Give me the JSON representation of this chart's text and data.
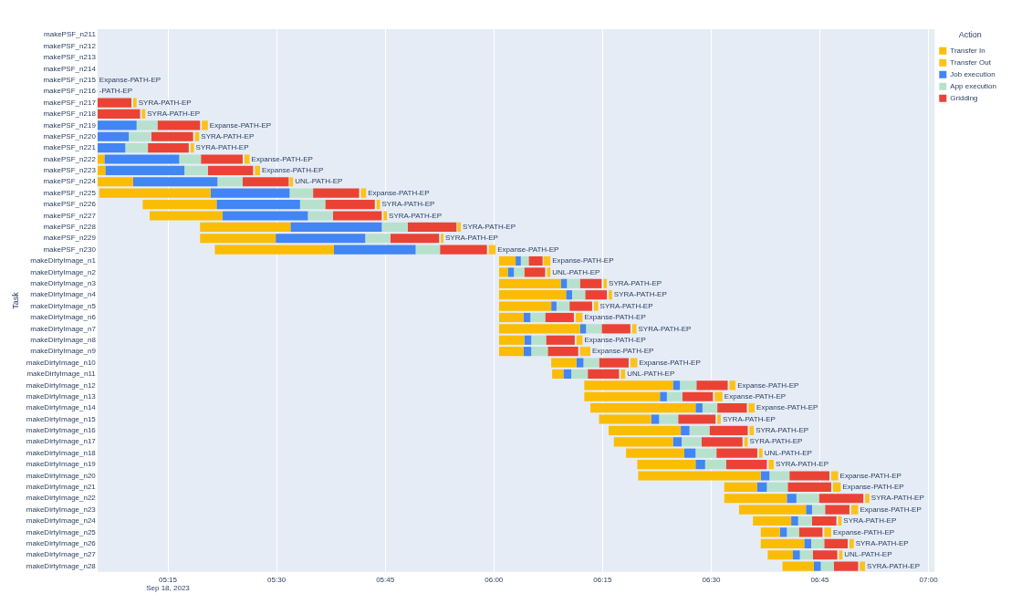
{
  "chart_data": {
    "type": "bar",
    "orientation": "horizontal",
    "ylabel": "Task",
    "legend_title": "Action",
    "legend": "top right",
    "grid": "x",
    "xlim": [
      5.088,
      7.014
    ],
    "xticks": [
      {
        "value": 5.25,
        "label": "05:15\nSep 18, 2023"
      },
      {
        "value": 5.5,
        "label": "05:30"
      },
      {
        "value": 5.75,
        "label": "05:45"
      },
      {
        "value": 6,
        "label": "06:00"
      },
      {
        "value": 6.25,
        "label": "06:15"
      },
      {
        "value": 6.5,
        "label": "06:30"
      },
      {
        "value": 6.75,
        "label": "06:45"
      },
      {
        "value": 7,
        "label": "07:00"
      }
    ],
    "categories": [
      "makePSF_n211",
      "makePSF_n212",
      "makePSF_n213",
      "makePSF_n214",
      "makePSF_n215",
      "makePSF_n216",
      "makePSF_n217",
      "makePSF_n218",
      "makePSF_n219",
      "makePSF_n220",
      "makePSF_n221",
      "makePSF_n222",
      "makePSF_n223",
      "makePSF_n224",
      "makePSF_n225",
      "makePSF_n226",
      "makePSF_n227",
      "makePSF_n228",
      "makePSF_n229",
      "makePSF_n230",
      "makeDirtyImage_n1",
      "makeDirtyImage_n2",
      "makeDirtyImage_n3",
      "makeDirtyImage_n4",
      "makeDirtyImage_n5",
      "makeDirtyImage_n6",
      "makeDirtyImage_n7",
      "makeDirtyImage_n8",
      "makeDirtyImage_n9",
      "makeDirtyImage_n10",
      "makeDirtyImage_n11",
      "makeDirtyImage_n12",
      "makeDirtyImage_n13",
      "makeDirtyImage_n14",
      "makeDirtyImage_n15",
      "makeDirtyImage_n16",
      "makeDirtyImage_n17",
      "makeDirtyImage_n18",
      "makeDirtyImage_n19",
      "makeDirtyImage_n20",
      "makeDirtyImage_n21",
      "makeDirtyImage_n22",
      "makeDirtyImage_n23",
      "makeDirtyImage_n24",
      "makeDirtyImage_n25",
      "makeDirtyImage_n26",
      "makeDirtyImage_n27",
      "makeDirtyImage_n28"
    ],
    "series": [
      {
        "name": "Transfer In",
        "color": "#fbbc04",
        "base": [
          null,
          null,
          null,
          null,
          null,
          null,
          null,
          null,
          null,
          null,
          null,
          5.088,
          5.088,
          5.088,
          5.092,
          5.192,
          5.208,
          5.324,
          5.324,
          5.358,
          6.012,
          6.012,
          6.012,
          6.012,
          6.012,
          6.012,
          6.012,
          6.012,
          6.012,
          6.132,
          6.134,
          6.208,
          6.208,
          6.222,
          6.242,
          6.264,
          6.276,
          6.304,
          6.33,
          6.332,
          6.53,
          6.53,
          6.564,
          6.596,
          6.614,
          6.614,
          6.63,
          6.664
        ],
        "values": [
          null,
          null,
          null,
          null,
          null,
          null,
          null,
          null,
          null,
          null,
          null,
          0.016,
          0.018,
          0.082,
          0.256,
          0.17,
          0.168,
          0.208,
          0.174,
          0.274,
          0.038,
          0.02,
          0.142,
          0.154,
          0.12,
          0.056,
          0.186,
          0.058,
          0.056,
          0.058,
          0.026,
          0.204,
          0.174,
          0.242,
          0.12,
          0.166,
          0.136,
          0.134,
          0.134,
          0.282,
          0.076,
          0.144,
          0.154,
          0.088,
          0.044,
          0.1,
          0.058,
          0.072
        ]
      },
      {
        "name": "Transfer Out",
        "color": "#fcc21b",
        "base": [
          null,
          null,
          null,
          null,
          null,
          null,
          5.17,
          5.19,
          5.328,
          5.312,
          5.302,
          5.426,
          5.45,
          5.53,
          5.694,
          5.73,
          5.746,
          5.916,
          5.878,
          5.988,
          6.114,
          6.122,
          6.252,
          6.264,
          6.23,
          6.188,
          6.318,
          6.19,
          6.198,
          6.314,
          6.292,
          6.542,
          6.508,
          6.586,
          6.514,
          6.588,
          6.576,
          6.61,
          6.632,
          6.776,
          6.78,
          6.854,
          6.822,
          6.792,
          6.76,
          6.818,
          6.794,
          6.842
        ],
        "values": [
          null,
          null,
          null,
          null,
          null,
          null,
          0.008,
          0.008,
          0.014,
          0.01,
          0.008,
          0.012,
          0.012,
          0.008,
          0.012,
          0.008,
          0.008,
          0.008,
          0.006,
          0.016,
          0.016,
          0.008,
          0.008,
          0.008,
          0.01,
          0.016,
          0.01,
          0.014,
          0.024,
          0.016,
          0.01,
          0.014,
          0.018,
          0.014,
          0.008,
          0.01,
          0.008,
          0.008,
          0.012,
          0.016,
          0.018,
          0.01,
          0.016,
          0.008,
          0.016,
          0.01,
          0.008,
          0.012
        ]
      },
      {
        "name": "Job execution",
        "color": "#4285f4",
        "base": [
          null,
          null,
          null,
          null,
          null,
          null,
          null,
          null,
          5.088,
          5.088,
          5.088,
          5.104,
          5.106,
          5.17,
          5.348,
          5.362,
          5.376,
          5.532,
          5.498,
          5.632,
          6.05,
          6.032,
          6.154,
          6.166,
          6.132,
          6.068,
          6.198,
          6.07,
          6.068,
          6.19,
          6.16,
          6.412,
          6.382,
          6.464,
          6.362,
          6.43,
          6.412,
          6.438,
          6.464,
          6.614,
          6.606,
          6.674,
          6.718,
          6.684,
          6.658,
          6.714,
          6.688,
          6.736
        ],
        "values": [
          null,
          null,
          null,
          null,
          null,
          null,
          null,
          null,
          0.09,
          0.072,
          0.064,
          0.172,
          0.182,
          0.194,
          0.182,
          0.192,
          0.196,
          0.21,
          0.206,
          0.188,
          0.012,
          0.014,
          0.014,
          0.014,
          0.012,
          0.016,
          0.014,
          0.016,
          0.018,
          0.016,
          0.018,
          0.016,
          0.016,
          0.016,
          0.018,
          0.02,
          0.02,
          0.026,
          0.022,
          0.02,
          0.022,
          0.022,
          0.014,
          0.016,
          0.016,
          0.016,
          0.016,
          0.016
        ]
      },
      {
        "name": "App execution",
        "color": "#b7e1cd",
        "base": [
          null,
          null,
          null,
          null,
          null,
          null,
          null,
          null,
          5.178,
          5.16,
          5.152,
          5.276,
          5.288,
          5.364,
          5.53,
          5.554,
          5.572,
          5.742,
          5.704,
          5.82,
          6.062,
          6.046,
          6.168,
          6.18,
          6.144,
          6.084,
          6.212,
          6.086,
          6.086,
          6.206,
          6.178,
          6.428,
          6.398,
          6.48,
          6.38,
          6.45,
          6.432,
          6.464,
          6.486,
          6.634,
          6.628,
          6.696,
          6.732,
          6.7,
          6.674,
          6.73,
          6.704,
          6.752
        ],
        "values": [
          null,
          null,
          null,
          null,
          null,
          null,
          null,
          null,
          0.048,
          0.052,
          0.052,
          0.05,
          0.054,
          0.058,
          0.054,
          0.058,
          0.058,
          0.06,
          0.058,
          0.056,
          0.018,
          0.024,
          0.03,
          0.03,
          0.03,
          0.034,
          0.036,
          0.034,
          0.038,
          0.036,
          0.038,
          0.038,
          0.036,
          0.034,
          0.044,
          0.046,
          0.046,
          0.048,
          0.048,
          0.046,
          0.048,
          0.052,
          0.03,
          0.032,
          0.028,
          0.03,
          0.03,
          0.03
        ]
      },
      {
        "name": "Gridding",
        "color": "#ea4335",
        "base": [
          null,
          null,
          null,
          null,
          null,
          null,
          5.088,
          5.088,
          5.226,
          5.212,
          5.204,
          5.326,
          5.342,
          5.422,
          5.584,
          5.612,
          5.63,
          5.802,
          5.762,
          5.876,
          6.08,
          6.07,
          6.198,
          6.21,
          6.174,
          6.118,
          6.248,
          6.12,
          6.124,
          6.242,
          6.216,
          6.466,
          6.434,
          6.514,
          6.424,
          6.496,
          6.478,
          6.512,
          6.534,
          6.68,
          6.676,
          6.748,
          6.762,
          6.732,
          6.702,
          6.76,
          6.734,
          6.782
        ],
        "values": [
          null,
          null,
          null,
          null,
          null,
          null,
          0.078,
          0.098,
          0.098,
          0.096,
          0.094,
          0.096,
          0.104,
          0.106,
          0.106,
          0.114,
          0.112,
          0.112,
          0.112,
          0.108,
          0.032,
          0.048,
          0.05,
          0.05,
          0.052,
          0.066,
          0.066,
          0.066,
          0.07,
          0.068,
          0.072,
          0.072,
          0.07,
          0.068,
          0.086,
          0.088,
          0.094,
          0.094,
          0.094,
          0.092,
          0.1,
          0.102,
          0.056,
          0.056,
          0.054,
          0.054,
          0.056,
          0.056
        ]
      }
    ],
    "annotations": [
      "Expanse-PATH-EP",
      "-PATH-EP",
      {
        "text": "SYRA-PATH-EP",
        "x": 5.178,
        "y": "makePSF_n217"
      },
      {
        "text": "SYRA-PATH-EP",
        "x": 5.198,
        "y": "makePSF_n218"
      },
      {
        "text": "Expanse-PATH-EP",
        "x": 5.342,
        "y": "makePSF_n219"
      },
      {
        "text": "SYRA-PATH-EP",
        "x": 5.322,
        "y": "makePSF_n220"
      },
      {
        "text": "SYRA-PATH-EP",
        "x": 5.31,
        "y": "makePSF_n221"
      },
      {
        "text": "Expanse-PATH-EP",
        "x": 5.438,
        "y": "makePSF_n222"
      },
      {
        "text": "Expanse-PATH-EP",
        "x": 5.462,
        "y": "makePSF_n223"
      },
      {
        "text": "UNL-PATH-EP",
        "x": 5.538,
        "y": "makePSF_n224"
      },
      {
        "text": "Expanse-PATH-EP",
        "x": 5.706,
        "y": "makePSF_n225"
      },
      {
        "text": "SYRA-PATH-EP",
        "x": 5.738,
        "y": "makePSF_n226"
      },
      {
        "text": "SYRA-PATH-EP",
        "x": 5.754,
        "y": "makePSF_n227"
      },
      {
        "text": "SYRA-PATH-EP",
        "x": 5.924,
        "y": "makePSF_n228"
      },
      {
        "text": "SYRA-PATH-EP",
        "x": 5.884,
        "y": "makePSF_n229"
      },
      {
        "text": "Expanse-PATH-EP",
        "x": 6.004,
        "y": "makePSF_n230"
      },
      {
        "text": "Expanse-PATH-EP",
        "x": 6.13,
        "y": "makeDirtyImage_n1"
      },
      {
        "text": "UNL-PATH-EP",
        "x": 6.13,
        "y": "makeDirtyImage_n2"
      },
      {
        "text": "SYRA-PATH-EP",
        "x": 6.26,
        "y": "makeDirtyImage_n3"
      },
      {
        "text": "SYRA-PATH-EP",
        "x": 6.272,
        "y": "makeDirtyImage_n4"
      },
      {
        "text": "SYRA-PATH-EP",
        "x": 6.24,
        "y": "makeDirtyImage_n5"
      },
      {
        "text": "Expanse-PATH-EP",
        "x": 6.204,
        "y": "makeDirtyImage_n6"
      },
      {
        "text": "SYRA-PATH-EP",
        "x": 6.328,
        "y": "makeDirtyImage_n7"
      },
      {
        "text": "Expanse-PATH-EP",
        "x": 6.204,
        "y": "makeDirtyImage_n8"
      },
      {
        "text": "Expanse-PATH-EP",
        "x": 6.222,
        "y": "makeDirtyImage_n9"
      },
      {
        "text": "Expanse-PATH-EP",
        "x": 6.33,
        "y": "makeDirtyImage_n10"
      },
      {
        "text": "UNL-PATH-EP",
        "x": 6.302,
        "y": "makeDirtyImage_n11"
      },
      {
        "text": "Expanse-PATH-EP",
        "x": 6.556,
        "y": "makeDirtyImage_n12"
      },
      {
        "text": "Expanse-PATH-EP",
        "x": 6.526,
        "y": "makeDirtyImage_n13"
      },
      {
        "text": "Expanse-PATH-EP",
        "x": 6.6,
        "y": "makeDirtyImage_n14"
      },
      {
        "text": "SYRA-PATH-EP",
        "x": 6.522,
        "y": "makeDirtyImage_n15"
      },
      {
        "text": "SYRA-PATH-EP",
        "x": 6.598,
        "y": "makeDirtyImage_n16"
      },
      {
        "text": "SYRA-PATH-EP",
        "x": 6.584,
        "y": "makeDirtyImage_n17"
      },
      {
        "text": "UNL-PATH-EP",
        "x": 6.618,
        "y": "makeDirtyImage_n18"
      },
      {
        "text": "SYRA-PATH-EP",
        "x": 6.644,
        "y": "makeDirtyImage_n19"
      },
      {
        "text": "Expanse-PATH-EP",
        "x": 6.792,
        "y": "makeDirtyImage_n20"
      },
      {
        "text": "Expanse-PATH-EP",
        "x": 6.798,
        "y": "makeDirtyImage_n21"
      },
      {
        "text": "SYRA-PATH-EP",
        "x": 6.864,
        "y": "makeDirtyImage_n22"
      },
      {
        "text": "Expanse-PATH-EP",
        "x": 6.838,
        "y": "makeDirtyImage_n23"
      },
      {
        "text": "SYRA-PATH-EP",
        "x": 6.8,
        "y": "makeDirtyImage_n24"
      },
      {
        "text": "Expanse-PATH-EP",
        "x": 6.776,
        "y": "makeDirtyImage_n25"
      },
      {
        "text": "SYRA-PATH-EP",
        "x": 6.828,
        "y": "makeDirtyImage_n26"
      },
      {
        "text": "UNL-PATH-EP",
        "x": 6.802,
        "y": "makeDirtyImage_n27"
      },
      {
        "text": "SYRA-PATH-EP",
        "x": 6.854,
        "y": "makeDirtyImage_n28"
      }
    ]
  }
}
